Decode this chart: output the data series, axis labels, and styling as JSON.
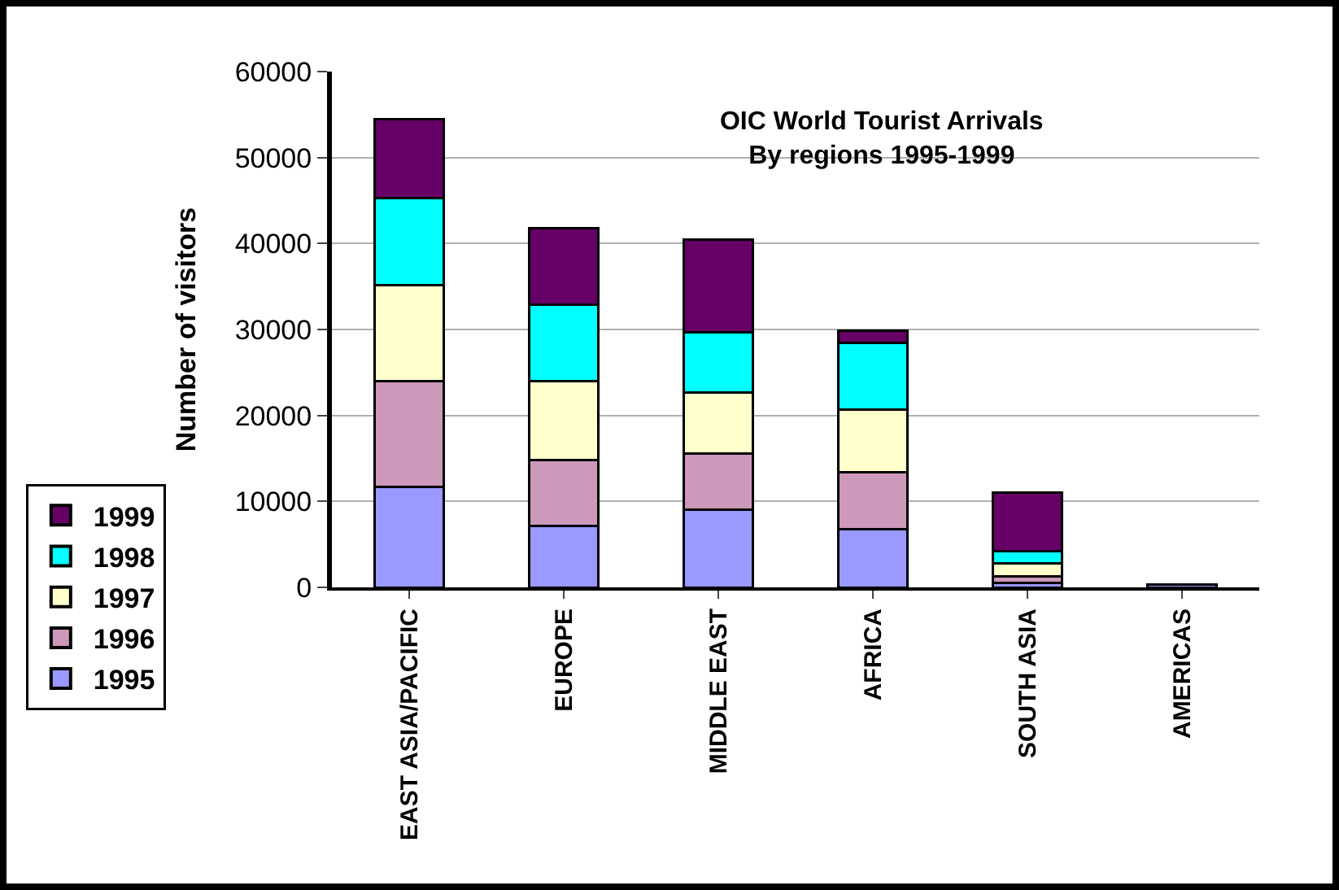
{
  "chart_data": {
    "type": "bar",
    "title": "OIC World Tourist Arrivals\nBy regions 1995-1999",
    "ylabel": "Number of visitors",
    "categories": [
      "EAST ASIA/PACIFIC",
      "EUROPE",
      "MIDDLE EAST",
      "AFRICA",
      "SOUTH ASIA",
      "AMERICAS"
    ],
    "stacked": true,
    "series": [
      {
        "name": "1995",
        "color": "#9999ff",
        "values": [
          11700,
          7100,
          9000,
          6800,
          500,
          300
        ]
      },
      {
        "name": "1996",
        "color": "#cc99bb",
        "values": [
          12300,
          7700,
          6600,
          6600,
          800,
          0
        ]
      },
      {
        "name": "1997",
        "color": "#ffffcc",
        "values": [
          11200,
          9200,
          7100,
          7300,
          1500,
          0
        ]
      },
      {
        "name": "1998",
        "color": "#00ffff",
        "values": [
          10100,
          8900,
          7000,
          7700,
          1400,
          0
        ]
      },
      {
        "name": "1999",
        "color": "#660066",
        "values": [
          9200,
          8900,
          10800,
          1500,
          6800,
          0
        ]
      }
    ],
    "ylim": [
      0,
      60000
    ],
    "yticks": [
      0,
      10000,
      20000,
      30000,
      40000,
      50000,
      60000
    ],
    "grid": "y",
    "legend": "bottom left"
  }
}
